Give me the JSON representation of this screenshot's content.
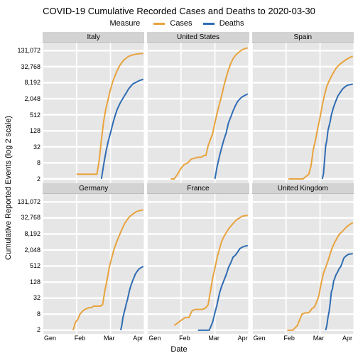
{
  "title": "COVID-19 Cumulative Recorded Cases and Deaths to 2020-03-30",
  "legend": {
    "title": "Measure",
    "items": [
      {
        "label": "Cases",
        "color": "#e8a33d"
      },
      {
        "label": "Deaths",
        "color": "#2f6cb3"
      }
    ]
  },
  "axes": {
    "y_title": "Cumulative Reported Events (log 2 scale)",
    "x_title": "Date",
    "y_ticks": [
      2,
      8,
      32,
      128,
      512,
      2048,
      8192,
      32768,
      131072
    ],
    "y_log_base": 2,
    "y_domain_log2": [
      0.5,
      18
    ],
    "x_ticks": [
      "Gen",
      "Feb",
      "Mar",
      "Apr"
    ],
    "x_domain": [
      0,
      90
    ]
  },
  "style": {
    "panel_bg": "#e6e6e6",
    "strip_bg": "#d3d3d3",
    "grid_color": "#ffffff",
    "title_fontsize": 13,
    "label_fontsize": 11,
    "tick_fontsize": 9,
    "line_width": 2
  },
  "facets": [
    {
      "label": "Italy",
      "series": {
        "cases": [
          [
            30,
            3
          ],
          [
            35,
            3
          ],
          [
            38,
            3
          ],
          [
            40,
            3
          ],
          [
            42,
            3
          ],
          [
            44,
            3
          ],
          [
            46,
            3
          ],
          [
            48,
            3
          ],
          [
            50,
            10
          ],
          [
            52,
            60
          ],
          [
            54,
            300
          ],
          [
            56,
            900
          ],
          [
            58,
            2000
          ],
          [
            60,
            4600
          ],
          [
            62,
            9000
          ],
          [
            64,
            15000
          ],
          [
            66,
            24000
          ],
          [
            68,
            35000
          ],
          [
            70,
            47000
          ],
          [
            72,
            59000
          ],
          [
            74,
            69000
          ],
          [
            76,
            80000
          ],
          [
            78,
            86000
          ],
          [
            80,
            92000
          ],
          [
            83,
            97000
          ],
          [
            86,
            101000
          ],
          [
            89,
            102000
          ]
        ],
        "deaths": [
          [
            52,
            2
          ],
          [
            54,
            7
          ],
          [
            56,
            21
          ],
          [
            58,
            52
          ],
          [
            60,
            107
          ],
          [
            62,
            233
          ],
          [
            64,
            463
          ],
          [
            66,
            827
          ],
          [
            68,
            1266
          ],
          [
            70,
            1809
          ],
          [
            72,
            2503
          ],
          [
            74,
            3405
          ],
          [
            76,
            4825
          ],
          [
            78,
            6077
          ],
          [
            80,
            7503
          ],
          [
            82,
            8215
          ],
          [
            84,
            9134
          ],
          [
            86,
            10023
          ],
          [
            89,
            11000
          ]
        ]
      }
    },
    {
      "label": "United States",
      "series": {
        "cases": [
          [
            21,
            2
          ],
          [
            24,
            2
          ],
          [
            27,
            3
          ],
          [
            30,
            5
          ],
          [
            33,
            7
          ],
          [
            36,
            8
          ],
          [
            39,
            11
          ],
          [
            42,
            12
          ],
          [
            45,
            13
          ],
          [
            48,
            13
          ],
          [
            50,
            15
          ],
          [
            52,
            15
          ],
          [
            54,
            35
          ],
          [
            56,
            60
          ],
          [
            58,
            100
          ],
          [
            60,
            260
          ],
          [
            62,
            600
          ],
          [
            64,
            1300
          ],
          [
            66,
            2700
          ],
          [
            68,
            6400
          ],
          [
            70,
            13000
          ],
          [
            72,
            25000
          ],
          [
            74,
            43000
          ],
          [
            76,
            65000
          ],
          [
            78,
            85000
          ],
          [
            80,
            104000
          ],
          [
            82,
            122000
          ],
          [
            84,
            140000
          ],
          [
            87,
            160000
          ],
          [
            89,
            165000
          ]
        ],
        "deaths": [
          [
            60,
            2
          ],
          [
            62,
            6
          ],
          [
            64,
            14
          ],
          [
            66,
            30
          ],
          [
            68,
            60
          ],
          [
            70,
            108
          ],
          [
            72,
            255
          ],
          [
            74,
            417
          ],
          [
            76,
            706
          ],
          [
            78,
            1100
          ],
          [
            80,
            1600
          ],
          [
            82,
            2000
          ],
          [
            84,
            2400
          ],
          [
            87,
            2800
          ],
          [
            89,
            3100
          ]
        ]
      }
    },
    {
      "label": "Spain",
      "series": {
        "cases": [
          [
            32,
            2
          ],
          [
            40,
            2
          ],
          [
            45,
            2
          ],
          [
            50,
            3
          ],
          [
            52,
            6
          ],
          [
            54,
            25
          ],
          [
            56,
            58
          ],
          [
            58,
            165
          ],
          [
            60,
            400
          ],
          [
            62,
            1200
          ],
          [
            64,
            2900
          ],
          [
            66,
            6000
          ],
          [
            68,
            9500
          ],
          [
            70,
            14000
          ],
          [
            72,
            20000
          ],
          [
            74,
            28000
          ],
          [
            76,
            35000
          ],
          [
            78,
            42000
          ],
          [
            80,
            49000
          ],
          [
            82,
            56000
          ],
          [
            84,
            64000
          ],
          [
            86,
            72000
          ],
          [
            89,
            80000
          ]
        ],
        "deaths": [
          [
            62,
            2
          ],
          [
            63,
            3
          ],
          [
            64,
            10
          ],
          [
            65,
            35
          ],
          [
            66,
            55
          ],
          [
            67,
            130
          ],
          [
            68,
            195
          ],
          [
            69,
            290
          ],
          [
            70,
            500
          ],
          [
            72,
            1000
          ],
          [
            74,
            1700
          ],
          [
            76,
            2700
          ],
          [
            78,
            3600
          ],
          [
            80,
            4800
          ],
          [
            82,
            5700
          ],
          [
            84,
            6500
          ],
          [
            89,
            7300
          ]
        ]
      }
    },
    {
      "label": "Germany",
      "series": {
        "cases": [
          [
            27,
            2
          ],
          [
            29,
            4
          ],
          [
            31,
            5
          ],
          [
            33,
            8
          ],
          [
            35,
            10
          ],
          [
            37,
            12
          ],
          [
            39,
            13
          ],
          [
            41,
            14
          ],
          [
            43,
            14
          ],
          [
            45,
            16
          ],
          [
            47,
            16
          ],
          [
            49,
            16
          ],
          [
            51,
            16
          ],
          [
            53,
            18
          ],
          [
            55,
            60
          ],
          [
            57,
            160
          ],
          [
            59,
            480
          ],
          [
            61,
            1000
          ],
          [
            63,
            2100
          ],
          [
            65,
            3700
          ],
          [
            67,
            6000
          ],
          [
            69,
            9500
          ],
          [
            71,
            15000
          ],
          [
            73,
            22000
          ],
          [
            75,
            29000
          ],
          [
            77,
            37000
          ],
          [
            79,
            43000
          ],
          [
            81,
            50000
          ],
          [
            83,
            57000
          ],
          [
            86,
            62000
          ],
          [
            89,
            66000
          ]
        ],
        "deaths": [
          [
            69,
            2
          ],
          [
            70,
            3
          ],
          [
            71,
            6
          ],
          [
            72,
            9
          ],
          [
            73,
            13
          ],
          [
            74,
            20
          ],
          [
            75,
            28
          ],
          [
            76,
            44
          ],
          [
            77,
            67
          ],
          [
            78,
            94
          ],
          [
            79,
            123
          ],
          [
            80,
            160
          ],
          [
            81,
            200
          ],
          [
            82,
            260
          ],
          [
            83,
            300
          ],
          [
            85,
            390
          ],
          [
            87,
            450
          ],
          [
            89,
            500
          ]
        ]
      }
    },
    {
      "label": "France",
      "series": {
        "cases": [
          [
            24,
            3
          ],
          [
            28,
            4
          ],
          [
            31,
            5
          ],
          [
            34,
            6
          ],
          [
            37,
            6
          ],
          [
            40,
            11
          ],
          [
            43,
            12
          ],
          [
            46,
            12
          ],
          [
            49,
            12
          ],
          [
            52,
            14
          ],
          [
            54,
            18
          ],
          [
            56,
            57
          ],
          [
            58,
            180
          ],
          [
            60,
            420
          ],
          [
            62,
            1100
          ],
          [
            64,
            2200
          ],
          [
            66,
            4400
          ],
          [
            68,
            6600
          ],
          [
            70,
            9100
          ],
          [
            72,
            12600
          ],
          [
            74,
            16000
          ],
          [
            76,
            20000
          ],
          [
            78,
            25000
          ],
          [
            80,
            30000
          ],
          [
            82,
            33000
          ],
          [
            84,
            38000
          ],
          [
            87,
            40000
          ],
          [
            89,
            41000
          ]
        ],
        "deaths": [
          [
            45,
            2
          ],
          [
            50,
            2
          ],
          [
            55,
            2
          ],
          [
            58,
            4
          ],
          [
            60,
            9
          ],
          [
            62,
            19
          ],
          [
            64,
            48
          ],
          [
            66,
            91
          ],
          [
            68,
            148
          ],
          [
            70,
            244
          ],
          [
            72,
            450
          ],
          [
            74,
            674
          ],
          [
            76,
            1100
          ],
          [
            78,
            1300
          ],
          [
            80,
            1700
          ],
          [
            82,
            2300
          ],
          [
            84,
            2600
          ],
          [
            87,
            2900
          ],
          [
            89,
            3000
          ]
        ]
      }
    },
    {
      "label": "United Kingdom",
      "series": {
        "cases": [
          [
            31,
            2
          ],
          [
            36,
            2
          ],
          [
            40,
            3
          ],
          [
            44,
            8
          ],
          [
            47,
            9
          ],
          [
            50,
            9
          ],
          [
            53,
            13
          ],
          [
            55,
            15
          ],
          [
            57,
            23
          ],
          [
            59,
            40
          ],
          [
            61,
            115
          ],
          [
            63,
            270
          ],
          [
            65,
            460
          ],
          [
            67,
            800
          ],
          [
            69,
            1500
          ],
          [
            71,
            2600
          ],
          [
            73,
            4000
          ],
          [
            75,
            5700
          ],
          [
            77,
            8100
          ],
          [
            79,
            9500
          ],
          [
            81,
            11700
          ],
          [
            83,
            14500
          ],
          [
            85,
            17100
          ],
          [
            87,
            19500
          ],
          [
            89,
            22000
          ]
        ],
        "deaths": [
          [
            65,
            2
          ],
          [
            66,
            3
          ],
          [
            67,
            6
          ],
          [
            68,
            10
          ],
          [
            69,
            21
          ],
          [
            70,
            55
          ],
          [
            71,
            72
          ],
          [
            72,
            137
          ],
          [
            73,
            177
          ],
          [
            74,
            233
          ],
          [
            75,
            281
          ],
          [
            76,
            335
          ],
          [
            77,
            422
          ],
          [
            78,
            463
          ],
          [
            79,
            578
          ],
          [
            80,
            759
          ],
          [
            81,
            1019
          ],
          [
            83,
            1228
          ],
          [
            85,
            1408
          ],
          [
            89,
            1500
          ]
        ]
      }
    }
  ]
}
